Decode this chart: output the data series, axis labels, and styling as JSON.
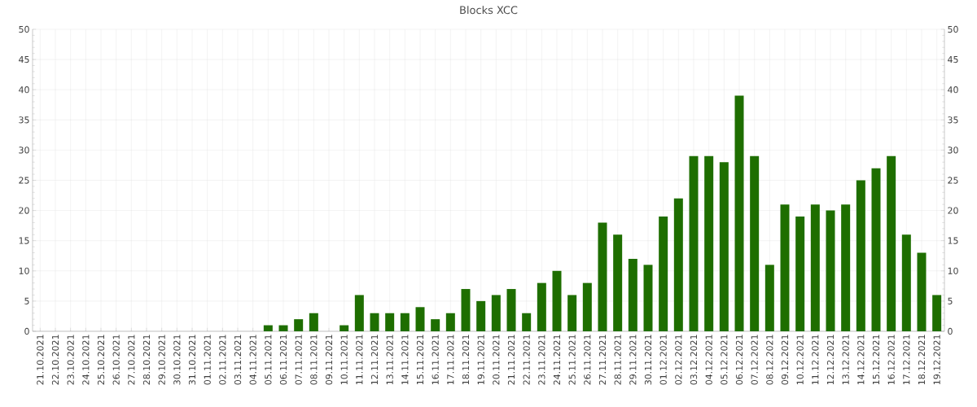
{
  "chart_data": {
    "type": "bar",
    "title": "Blocks XCC",
    "categories": [
      "21.10.2021",
      "22.10.2021",
      "23.10.2021",
      "24.10.2021",
      "25.10.2021",
      "26.10.2021",
      "27.10.2021",
      "28.10.2021",
      "29.10.2021",
      "30.10.2021",
      "31.10.2021",
      "01.11.2021",
      "02.11.2021",
      "03.11.2021",
      "04.11.2021",
      "05.11.2021",
      "06.11.2021",
      "07.11.2021",
      "08.11.2021",
      "09.11.2021",
      "10.11.2021",
      "11.11.2021",
      "12.11.2021",
      "13.11.2021",
      "14.11.2021",
      "15.11.2021",
      "16.11.2021",
      "17.11.2021",
      "18.11.2021",
      "19.11.2021",
      "20.11.2021",
      "21.11.2021",
      "22.11.2021",
      "23.11.2021",
      "24.11.2021",
      "25.11.2021",
      "26.11.2021",
      "27.11.2021",
      "28.11.2021",
      "29.11.2021",
      "30.11.2021",
      "01.12.2021",
      "02.12.2021",
      "03.12.2021",
      "04.12.2021",
      "05.12.2021",
      "06.12.2021",
      "07.12.2021",
      "08.12.2021",
      "09.12.2021",
      "10.12.2021",
      "11.12.2021",
      "12.12.2021",
      "13.12.2021",
      "14.12.2021",
      "15.12.2021",
      "16.12.2021",
      "17.12.2021",
      "18.12.2021",
      "19.12.2021"
    ],
    "values": [
      0,
      0,
      0,
      0,
      0,
      0,
      0,
      0,
      0,
      0,
      0,
      0,
      0,
      0,
      0,
      1,
      1,
      2,
      3,
      0,
      1,
      6,
      3,
      3,
      3,
      4,
      2,
      3,
      7,
      5,
      6,
      7,
      3,
      8,
      10,
      6,
      8,
      18,
      16,
      12,
      11,
      19,
      22,
      29,
      29,
      28,
      39,
      29,
      11,
      21,
      19,
      21,
      20,
      21,
      25,
      27,
      29,
      16,
      13,
      6
    ],
    "color": "#1e6e00",
    "ylim": [
      0,
      50
    ],
    "yticks": [
      0,
      5,
      10,
      15,
      20,
      25,
      30,
      35,
      40,
      45,
      50
    ],
    "y2lim": [
      0,
      50
    ],
    "y2ticks": [
      0,
      5,
      10,
      15,
      20,
      25,
      30,
      35,
      40,
      45,
      50
    ],
    "grid": true
  }
}
